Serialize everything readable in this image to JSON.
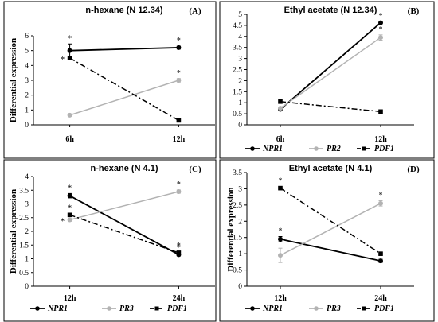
{
  "chart_data": [
    {
      "type": "line",
      "panel_label": "(A)",
      "title": "n-hexane (N 12.34)",
      "ylabel": "Differential expression",
      "xlabel": "",
      "categories": [
        "6h",
        "12h"
      ],
      "ylim": [
        0,
        6
      ],
      "yticks": [
        "0",
        "1",
        "2",
        "3",
        "4",
        "5",
        "6"
      ],
      "series": [
        {
          "name": "NPR1",
          "values": [
            5.0,
            5.2
          ],
          "color": "#000000",
          "style": "solid",
          "marker": "circle",
          "errors": [
            0.45,
            0.1
          ],
          "stars": [
            "*",
            "*"
          ]
        },
        {
          "name": "PR2",
          "values": [
            0.65,
            3.0
          ],
          "color": "#b3b3b3",
          "style": "solid",
          "marker": "circle",
          "errors": [
            0.05,
            0.12
          ],
          "stars": [
            "",
            "*"
          ]
        },
        {
          "name": "PDF1",
          "values": [
            4.5,
            0.3
          ],
          "color": "#000000",
          "style": "dashdot",
          "marker": "square",
          "errors": [
            0.1,
            0.05
          ],
          "stars": [
            "*",
            ""
          ]
        }
      ]
    },
    {
      "type": "line",
      "panel_label": "(B)",
      "title": "Ethyl acetate (N 12.34)",
      "ylabel": "",
      "xlabel": "",
      "categories": [
        "6h",
        "12h"
      ],
      "ylim": [
        0,
        5
      ],
      "yticks": [
        "0",
        "0.5",
        "1",
        "1.5",
        "2",
        "2.5",
        "3",
        "3.5",
        "4",
        "4.5",
        "5"
      ],
      "series": [
        {
          "name": "NPR1",
          "values": [
            0.7,
            4.62
          ],
          "color": "#000000",
          "style": "solid",
          "marker": "circle",
          "errors": [
            0.05,
            0.05
          ],
          "stars": [
            "",
            "*"
          ]
        },
        {
          "name": "PR2",
          "values": [
            0.75,
            3.95
          ],
          "color": "#b3b3b3",
          "style": "solid",
          "marker": "circle",
          "errors": [
            0.05,
            0.12
          ],
          "stars": [
            "",
            "*"
          ]
        },
        {
          "name": "PDF1",
          "values": [
            1.05,
            0.6
          ],
          "color": "#000000",
          "style": "dashdot",
          "marker": "square",
          "errors": [
            0.05,
            0.05
          ],
          "stars": [
            "",
            ""
          ]
        }
      ],
      "legend": [
        "NPR1",
        "PR2",
        "PDF1"
      ]
    },
    {
      "type": "line",
      "panel_label": "(C)",
      "title": "n-hexane (N 4.1)",
      "ylabel": "Differential expression",
      "xlabel": "",
      "categories": [
        "12h",
        "24h"
      ],
      "ylim": [
        0,
        4
      ],
      "yticks": [
        "0",
        "0.5",
        "1",
        "1.5",
        "2",
        "2.5",
        "3",
        "3.5",
        "4"
      ],
      "series": [
        {
          "name": "NPR1",
          "values": [
            3.3,
            1.15
          ],
          "color": "#000000",
          "style": "solid",
          "marker": "circle",
          "errors": [
            0.08,
            0.05
          ],
          "stars": [
            "*",
            "*"
          ]
        },
        {
          "name": "PR3",
          "values": [
            2.42,
            3.45
          ],
          "color": "#b3b3b3",
          "style": "solid",
          "marker": "circle",
          "errors": [
            0.05,
            0.06
          ],
          "stars": [
            "*",
            "*"
          ]
        },
        {
          "name": "PDF1",
          "values": [
            2.6,
            1.22
          ],
          "color": "#000000",
          "style": "dashdot",
          "marker": "square",
          "errors": [
            0.05,
            0.05
          ],
          "stars": [
            "*",
            "*"
          ]
        }
      ],
      "legend": [
        "NPR1",
        "PR3",
        "PDF1"
      ]
    },
    {
      "type": "line",
      "panel_label": "(D)",
      "title": "Ethyl acetate (N 4.1)",
      "ylabel": "Differential expression",
      "xlabel": "",
      "categories": [
        "12h",
        "24h"
      ],
      "ylim": [
        0,
        3.5
      ],
      "yticks": [
        "0",
        "0.5",
        "1",
        "1.5",
        "2",
        "2.5",
        "3",
        "3.5"
      ],
      "series": [
        {
          "name": "NPR1",
          "values": [
            1.45,
            0.78
          ],
          "color": "#000000",
          "style": "solid",
          "marker": "circle",
          "errors": [
            0.08,
            0.05
          ],
          "stars": [
            "*",
            ""
          ]
        },
        {
          "name": "PR3",
          "values": [
            0.95,
            2.55
          ],
          "color": "#b3b3b3",
          "style": "solid",
          "marker": "circle",
          "errors": [
            0.22,
            0.08
          ],
          "stars": [
            "",
            "*"
          ]
        },
        {
          "name": "PDF1",
          "values": [
            3.02,
            1.0
          ],
          "color": "#000000",
          "style": "dashdot",
          "marker": "square",
          "errors": [
            0.05,
            0.05
          ],
          "stars": [
            "*",
            ""
          ]
        }
      ],
      "legend": [
        "NPR1",
        "PR3",
        "PDF1"
      ]
    }
  ]
}
